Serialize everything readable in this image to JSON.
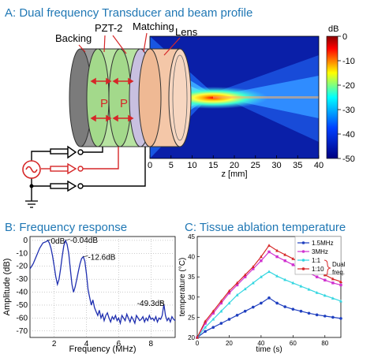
{
  "panels": {
    "a_title": "A: Dual frequency Transducer and beam profile",
    "b_title": "B: Frequency response",
    "c_title": "C: Tissue ablation temperature"
  },
  "transducer": {
    "labels": {
      "backing": "Backing",
      "pzt": "PZT-2",
      "matching": "Matching",
      "lens": "Lens",
      "p1": "P",
      "p2": "P"
    },
    "colors": {
      "backing": "#9a9a9a",
      "pzt": "#b7e3a1",
      "matching": "#d4cde8",
      "lens": "#f4c7a8",
      "wire": "#d62728",
      "arrow": "#d62728"
    }
  },
  "chart_data": [
    {
      "type": "heatmap",
      "xlabel": "z [mm]",
      "xlim": [
        0,
        40
      ],
      "xticks": [
        0,
        5,
        10,
        15,
        20,
        25,
        30,
        35,
        40
      ],
      "colorbar": {
        "unit": "dB",
        "range": [
          -50,
          0
        ],
        "ticks": [
          0,
          -10,
          -20,
          -30,
          -40,
          -50
        ]
      },
      "focus_z_mm": 15,
      "peak_db": 0
    },
    {
      "type": "line",
      "xlabel": "Frequency (MHz)",
      "ylabel": "Amplitude (dB)",
      "xlim": [
        0.5,
        9.5
      ],
      "ylim": [
        -75,
        3
      ],
      "xticks": [
        2,
        4,
        6,
        8
      ],
      "yticks": [
        0,
        -10,
        -20,
        -30,
        -40,
        -50,
        -60,
        -70
      ],
      "grid": true,
      "x": [
        0.5,
        0.7,
        0.9,
        1.1,
        1.3,
        1.5,
        1.6,
        1.7,
        1.8,
        1.9,
        2.0,
        2.1,
        2.2,
        2.3,
        2.4,
        2.5,
        2.6,
        2.7,
        2.8,
        2.9,
        3.0,
        3.1,
        3.2,
        3.3,
        3.4,
        3.5,
        3.6,
        3.7,
        3.8,
        3.9,
        4.0,
        4.1,
        4.2,
        4.3,
        4.4,
        4.5,
        4.6,
        4.7,
        4.8,
        4.9,
        5.0,
        5.1,
        5.2,
        5.3,
        5.4,
        5.5,
        5.6,
        5.7,
        5.8,
        5.9,
        6.0,
        6.1,
        6.2,
        6.3,
        6.4,
        6.5,
        6.6,
        6.7,
        6.8,
        6.9,
        7.0,
        7.1,
        7.2,
        7.3,
        7.4,
        7.5,
        7.6,
        7.7,
        7.8,
        7.9,
        8.0,
        8.1,
        8.2,
        8.3,
        8.4,
        8.5,
        8.6,
        8.7,
        8.8,
        8.9,
        9.0,
        9.1,
        9.2,
        9.3,
        9.4,
        9.5
      ],
      "y": [
        -22,
        -18,
        -12,
        -6,
        -2,
        -1,
        0,
        -2,
        -6,
        -12,
        -20,
        -28,
        -34,
        -30,
        -22,
        -12,
        -4,
        -0.04,
        -3,
        -10,
        -22,
        -34,
        -40,
        -36,
        -30,
        -24,
        -18,
        -14,
        -12.6,
        -16,
        -26,
        -38,
        -44,
        -50,
        -46,
        -52,
        -55,
        -58,
        -54,
        -60,
        -57,
        -62,
        -58,
        -56,
        -60,
        -63,
        -59,
        -61,
        -58,
        -62,
        -60,
        -64,
        -58,
        -60,
        -62,
        -57,
        -60,
        -63,
        -59,
        -61,
        -64,
        -58,
        -60,
        -62,
        -61,
        -59,
        -63,
        -60,
        -62,
        -58,
        -61,
        -60,
        -62,
        -59,
        -63,
        -60,
        -61,
        -58,
        -49.3,
        -58,
        -62,
        -60,
        -63,
        -59,
        -61,
        -62
      ],
      "annotations": [
        {
          "text": "0dB",
          "x": 1.6,
          "y": 0
        },
        {
          "text": "-0.04dB",
          "x": 2.7,
          "y": -0.04
        },
        {
          "text": "-12.6dB",
          "x": 3.8,
          "y": -12.6
        },
        {
          "text": "-49.3dB",
          "x": 8.8,
          "y": -49.3
        }
      ]
    },
    {
      "type": "line",
      "xlabel": "time (s)",
      "ylabel": "temperature (°C)",
      "xlim": [
        0,
        90
      ],
      "ylim": [
        20,
        45
      ],
      "xticks": [
        0,
        20,
        40,
        60,
        80
      ],
      "yticks": [
        20,
        25,
        30,
        35,
        40,
        45
      ],
      "legend": "top-right",
      "legend_note": "Dual freq.",
      "x": [
        0,
        5,
        10,
        15,
        20,
        25,
        30,
        35,
        40,
        45,
        50,
        55,
        60,
        65,
        70,
        75,
        80,
        85,
        90
      ],
      "series": [
        {
          "name": "1.5MHz",
          "color": "#1f3fbf",
          "marker": "circle",
          "values": [
            20,
            21.5,
            22.5,
            23.5,
            24.5,
            25.5,
            26.5,
            27.5,
            28.5,
            29.8,
            28.5,
            27.6,
            27.0,
            26.5,
            26.0,
            25.6,
            25.3,
            25.0,
            24.7
          ]
        },
        {
          "name": "3MHz",
          "color": "#d033d0",
          "marker": "square",
          "values": [
            20,
            23.5,
            26.0,
            28.5,
            31.0,
            33.0,
            35.0,
            37.0,
            39.0,
            41.2,
            40.0,
            39.0,
            38.0,
            37.0,
            36.0,
            35.0,
            34.2,
            33.5,
            33.0
          ]
        },
        {
          "name": "1:1",
          "color": "#33d6e0",
          "marker": "triangle",
          "values": [
            20,
            22.5,
            24.5,
            26.5,
            28.5,
            30.5,
            32.0,
            33.5,
            35.0,
            36.3,
            35.2,
            34.3,
            33.5,
            32.7,
            31.9,
            31.1,
            30.4,
            29.7,
            29.0
          ]
        },
        {
          "name": "1:10",
          "color": "#d62728",
          "marker": "triangle",
          "values": [
            20,
            24.0,
            26.5,
            29.0,
            31.5,
            33.5,
            35.5,
            37.5,
            40.0,
            42.8,
            41.5,
            40.5,
            39.5,
            38.5,
            37.5,
            36.5,
            35.5,
            34.5,
            33.8
          ]
        }
      ]
    }
  ]
}
